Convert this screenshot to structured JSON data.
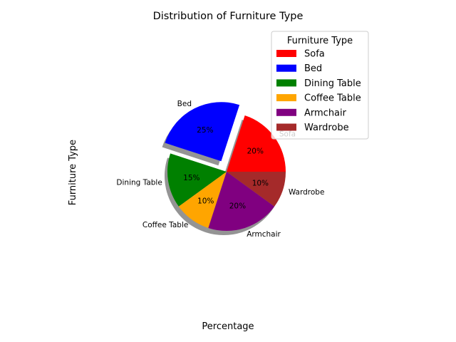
{
  "chart_data": {
    "type": "pie",
    "title": "Distribution of Furniture Type",
    "xlabel": "Percentage",
    "ylabel": "Furniture Type",
    "categories": [
      "Sofa",
      "Bed",
      "Dining Table",
      "Coffee Table",
      "Armchair",
      "Wardrobe"
    ],
    "values": [
      20,
      25,
      15,
      10,
      20,
      10
    ],
    "value_labels": [
      "20%",
      "25%",
      "15%",
      "10%",
      "20%",
      "10%"
    ],
    "colors": [
      "#ff0000",
      "#0000ff",
      "#008000",
      "#ffa500",
      "#800080",
      "#a52a2a"
    ],
    "exploded": "Bed",
    "shadow": true,
    "legend": {
      "title": "Furniture Type",
      "placement": "top-right"
    }
  }
}
